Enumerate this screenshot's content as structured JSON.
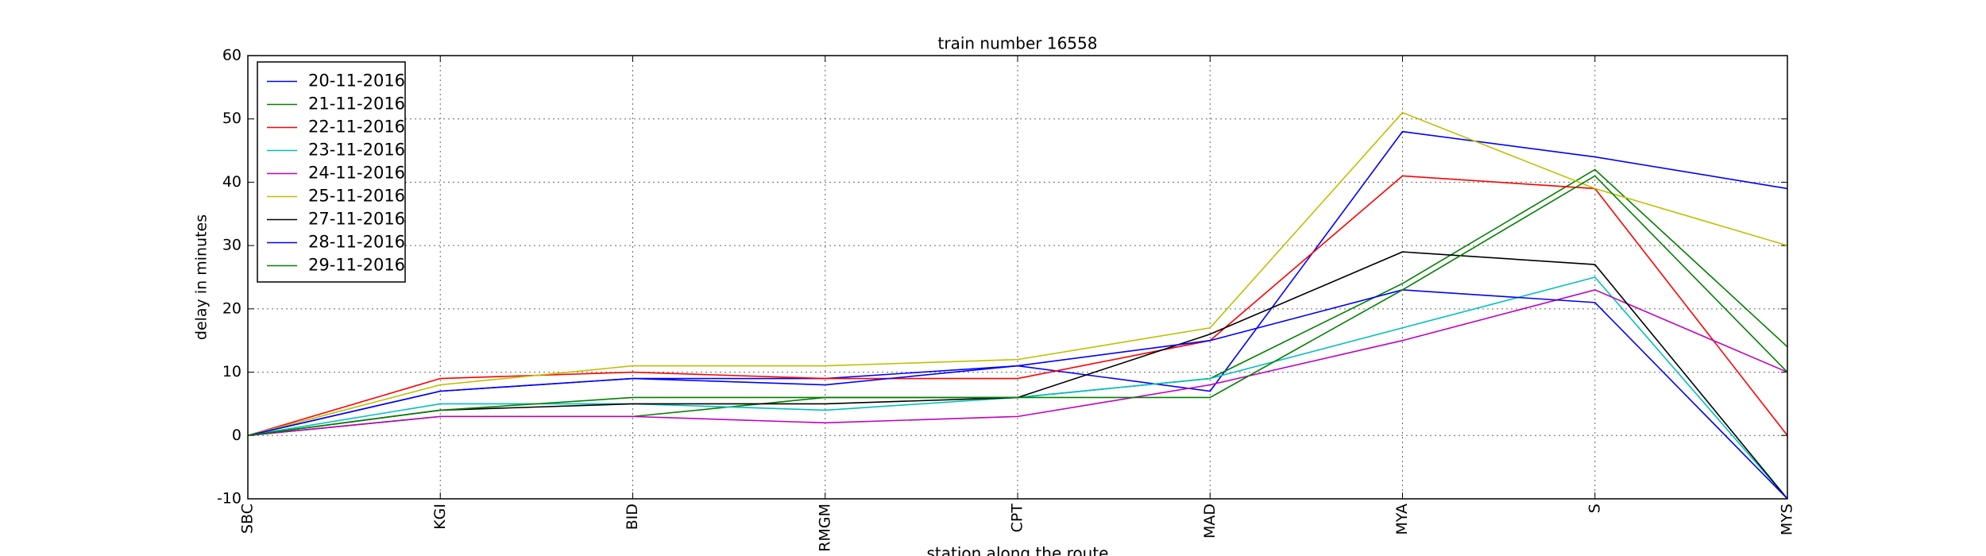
{
  "chart_data": {
    "type": "line",
    "title": "train number 16558",
    "xlabel": "station along the route",
    "ylabel": "delay in minutes",
    "categories": [
      "SBC",
      "KGI",
      "BID",
      "RMGM",
      "CPT",
      "MAD",
      "MYA",
      "S",
      "MYS"
    ],
    "series": [
      {
        "name": "20-11-2016",
        "color": "#0000ff",
        "values": [
          0,
          7,
          9,
          9,
          11,
          7,
          48,
          44,
          39
        ]
      },
      {
        "name": "21-11-2016",
        "color": "#008000",
        "values": [
          0,
          3,
          3,
          6,
          6,
          9,
          24,
          42,
          14
        ]
      },
      {
        "name": "22-11-2016",
        "color": "#ff0000",
        "values": [
          0,
          9,
          10,
          9,
          9,
          15,
          41,
          39,
          0
        ]
      },
      {
        "name": "23-11-2016",
        "color": "#00bfbf",
        "values": [
          0,
          5,
          5,
          4,
          6,
          9,
          17,
          25,
          -10
        ]
      },
      {
        "name": "24-11-2016",
        "color": "#bf00bf",
        "values": [
          0,
          3,
          3,
          2,
          3,
          8,
          15,
          23,
          10
        ]
      },
      {
        "name": "25-11-2016",
        "color": "#bfbf00",
        "values": [
          0,
          8,
          11,
          11,
          12,
          17,
          51,
          39,
          30
        ]
      },
      {
        "name": "27-11-2016",
        "color": "#000000",
        "values": [
          0,
          4,
          5,
          5,
          6,
          16,
          29,
          27,
          -10
        ]
      },
      {
        "name": "28-11-2016",
        "color": "#0000ff",
        "values": [
          0,
          7,
          9,
          8,
          11,
          15,
          23,
          21,
          -10
        ]
      },
      {
        "name": "29-11-2016",
        "color": "#008000",
        "values": [
          0,
          4,
          6,
          6,
          6,
          6,
          23,
          41,
          10
        ]
      }
    ],
    "ylim": [
      -10,
      60
    ],
    "yticks": [
      -10,
      0,
      10,
      20,
      30,
      40,
      50,
      60
    ],
    "grid": true,
    "legend": "upper left"
  }
}
